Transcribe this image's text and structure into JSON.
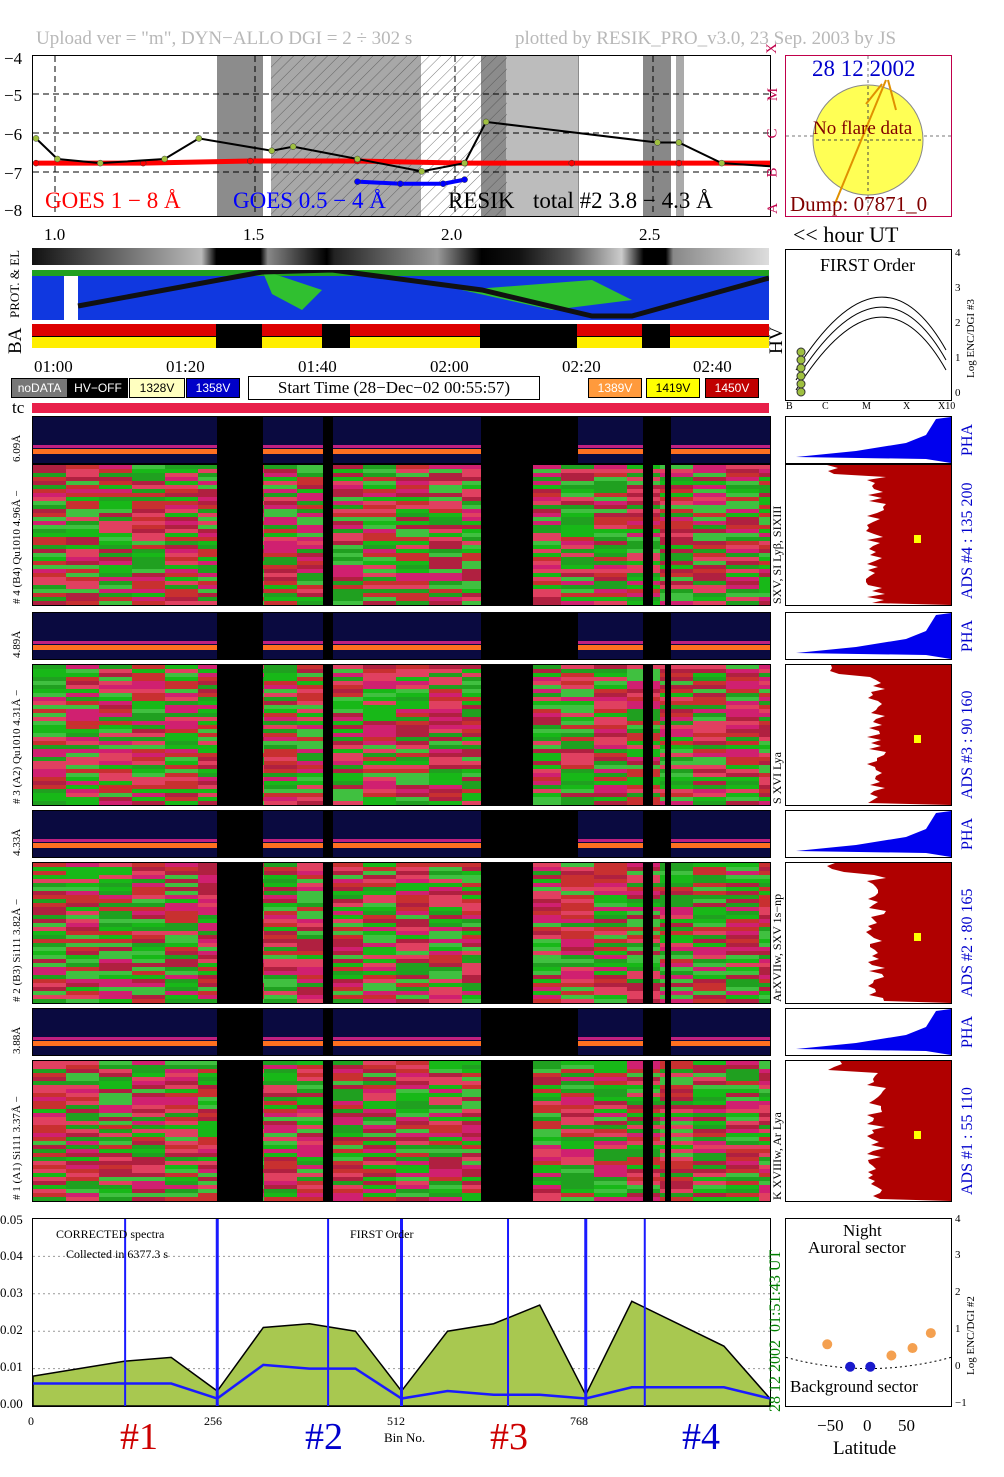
{
  "header": {
    "left": "Upload ver = \"m\", DYN−ALLO DGI =   2 ÷ 302 s",
    "right": "plotted by RESIK_PRO_v3.0, 23 Sep. 2003 by JS"
  },
  "goes_panel": {
    "y_ticks": [
      "−4",
      "−5",
      "−6",
      "−7",
      "−8"
    ],
    "class_ticks": [
      "X",
      "M",
      "C",
      "B",
      "A"
    ],
    "legend_goes_long": "GOES 1 − 8 Å",
    "legend_goes_short": "GOES 0.5 − 4 Å",
    "legend_resik_a": "RESIK",
    "legend_resik_b": "total #2  3.8 − 4.3 Å",
    "colors": {
      "goes_long": "#ff0000",
      "goes_short": "#0000ff",
      "resik": "#000000"
    }
  },
  "sun_panel": {
    "date": "28 12 2002",
    "no_flare": "No flare data",
    "dump": "Dump: 07871_0"
  },
  "orbit": {
    "hour_ticks": [
      "1.0",
      "1.5",
      "2.0",
      "2.5"
    ],
    "hour_axis_label": "<< hour UT",
    "prot_label": "PROT. & EL",
    "ba_label": "BA",
    "hv_label": "HV",
    "time_ticks": [
      "01:00",
      "01:20",
      "01:40",
      "02:00",
      "02:20",
      "02:40"
    ]
  },
  "legend_row": {
    "no_data": "noDATA",
    "hv_off": "HV−OFF",
    "v1": "1328V",
    "v2": "1358V",
    "start_time": "Start Time (28−Dec−02 00:55:57)",
    "v3": "1389V",
    "v4": "1419V",
    "v5": "1450V"
  },
  "first_order": {
    "title": "FIRST Order",
    "y_label": "Log ENC/DGI #3",
    "y_ticks": [
      "0",
      "1",
      "2",
      "3",
      "4"
    ],
    "x_ticks": [
      "B",
      "C",
      "M",
      "X",
      "X10"
    ]
  },
  "tc_label": "tc",
  "channels": [
    {
      "pha_label": "6.09Å",
      "main_label": "# 4 (B4) Qu1010 4.96Å −",
      "line_label": "SXV, SI Lyβ, SIXIII",
      "ads_label": "ADS #4 :   135 200",
      "pha_side": "PHA"
    },
    {
      "pha_label": "4.89Å",
      "main_label": "# 3 (A2) Qu1010  4.31Å −",
      "line_label": "S XVI Lya",
      "ads_label": "ADS #3 :   90 160",
      "pha_side": "PHA"
    },
    {
      "pha_label": "4.33Å",
      "main_label": "# 2 (B3) Si111  3.82Å −",
      "line_label": "ArXVIIw, SXV 1s−np",
      "ads_label": "ADS #2 :   80 165",
      "pha_side": "PHA"
    },
    {
      "pha_label": "3.88Å",
      "main_label": "# 1 (A1) Si111  3.37Å −",
      "line_label": "K XVIIIw, Ar Lya",
      "ads_label": "ADS #1 :   55 110",
      "pha_side": "PHA"
    }
  ],
  "spectrum": {
    "title_a": "CORRECTED spectra",
    "title_b": "Collected in  6377.3 s",
    "title_c": "FIRST Order",
    "y_ticks": [
      "0.00",
      "0.01",
      "0.02",
      "0.03",
      "0.04",
      "0.05"
    ],
    "x_ticks": [
      "0",
      "256",
      "512",
      "768"
    ],
    "x_label": "Bin No.",
    "side_time": "01:51:43 UT",
    "side_date": "28 12 2002",
    "channel_tags": [
      "#1",
      "#2",
      "#3",
      "#4"
    ],
    "tag_colors": [
      "#cc0000",
      "#0000cc",
      "#cc0000",
      "#0000cc"
    ]
  },
  "orbit_position": {
    "night": "Night",
    "auroral": "Auroral sector",
    "background": "Background sector",
    "x_label": "Latitude",
    "x_ticks": [
      "−50",
      "0",
      "50"
    ],
    "y_label": "Log ENC/DGI #2",
    "y_ticks": [
      "−1",
      "0",
      "1",
      "2",
      "3",
      "4"
    ]
  },
  "chart_data": [
    {
      "type": "line",
      "title": "",
      "ylabel": "",
      "xlabel": "",
      "ylim": [
        -8,
        -4
      ],
      "series": [
        {
          "name": "GOES 1 − 8 Å",
          "x": [
            1.0,
            1.25,
            1.5,
            1.75,
            2.0,
            2.25,
            2.5,
            2.75
          ],
          "y": [
            -6.6,
            -6.6,
            -6.55,
            -6.55,
            -6.6,
            -6.6,
            -6.6,
            -6.6
          ]
        },
        {
          "name": "GOES 0.5 − 4 Å",
          "x": [
            1.75,
            1.85,
            1.95,
            2.0
          ],
          "y": [
            -7.05,
            -7.1,
            -7.1,
            -7.0
          ]
        },
        {
          "name": "RESIK total #2  3.8 − 4.3 Å",
          "x": [
            1.0,
            1.05,
            1.15,
            1.3,
            1.38,
            1.55,
            1.6,
            1.75,
            1.9,
            2.0,
            2.05,
            2.45,
            2.5,
            2.6,
            2.75
          ],
          "y": [
            -6.0,
            -6.5,
            -6.6,
            -6.5,
            -6.0,
            -6.3,
            -6.2,
            -6.5,
            -6.8,
            -6.6,
            -5.6,
            -6.1,
            -6.1,
            -6.6,
            -6.7
          ]
        }
      ]
    },
    {
      "type": "line",
      "title": "",
      "xlabel": "Bin No.",
      "ylabel": "",
      "xlim": [
        0,
        1024
      ],
      "ylim": [
        0,
        0.05
      ],
      "series": [
        {
          "name": "",
          "x": [
            0,
            64,
            128,
            192,
            256,
            320,
            384,
            448,
            512,
            576,
            640,
            704,
            768,
            832,
            896,
            960,
            1024
          ],
          "y": [
            0.008,
            0.01,
            0.012,
            0.013,
            0.004,
            0.021,
            0.022,
            0.02,
            0.004,
            0.02,
            0.022,
            0.027,
            0.003,
            0.028,
            0.022,
            0.016,
            0.002
          ]
        },
        {
          "name": "",
          "x": [
            0,
            64,
            128,
            192,
            256,
            320,
            384,
            448,
            512,
            576,
            640,
            704,
            768,
            832,
            896,
            960,
            1024
          ],
          "y": [
            0.006,
            0.006,
            0.006,
            0.006,
            0.002,
            0.011,
            0.01,
            0.01,
            0.002,
            0.004,
            0.003,
            0.003,
            0.002,
            0.005,
            0.005,
            0.005,
            0.002
          ]
        }
      ]
    },
    {
      "type": "scatter",
      "title": "",
      "xlabel": "Latitude",
      "ylabel": "Log ENC/DGI #2",
      "xlim": [
        -90,
        90
      ],
      "ylim": [
        -1,
        4
      ],
      "series": [
        {
          "name": "",
          "x": [
            -45,
            25,
            48,
            68
          ],
          "y": [
            0.65,
            0.35,
            0.55,
            0.95
          ]
        },
        {
          "name": "",
          "x": [
            -20,
            2
          ],
          "y": [
            0.05,
            0.05
          ]
        }
      ]
    }
  ]
}
